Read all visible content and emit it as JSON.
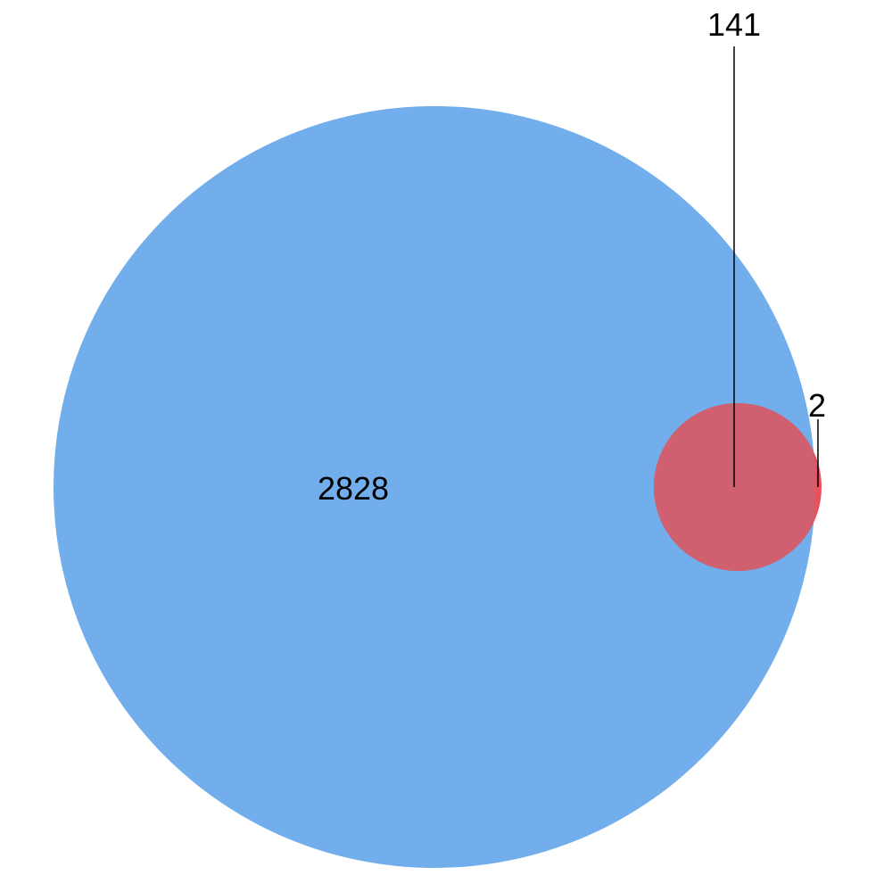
{
  "venn": {
    "sets": [
      {
        "id": "large-set",
        "color": "#71aeeb"
      },
      {
        "id": "small-set",
        "color": "#e8525e"
      }
    ],
    "overlap_color": "#d06070",
    "regions": {
      "large_only": "2828",
      "intersection": "141",
      "small_only": "2"
    }
  }
}
